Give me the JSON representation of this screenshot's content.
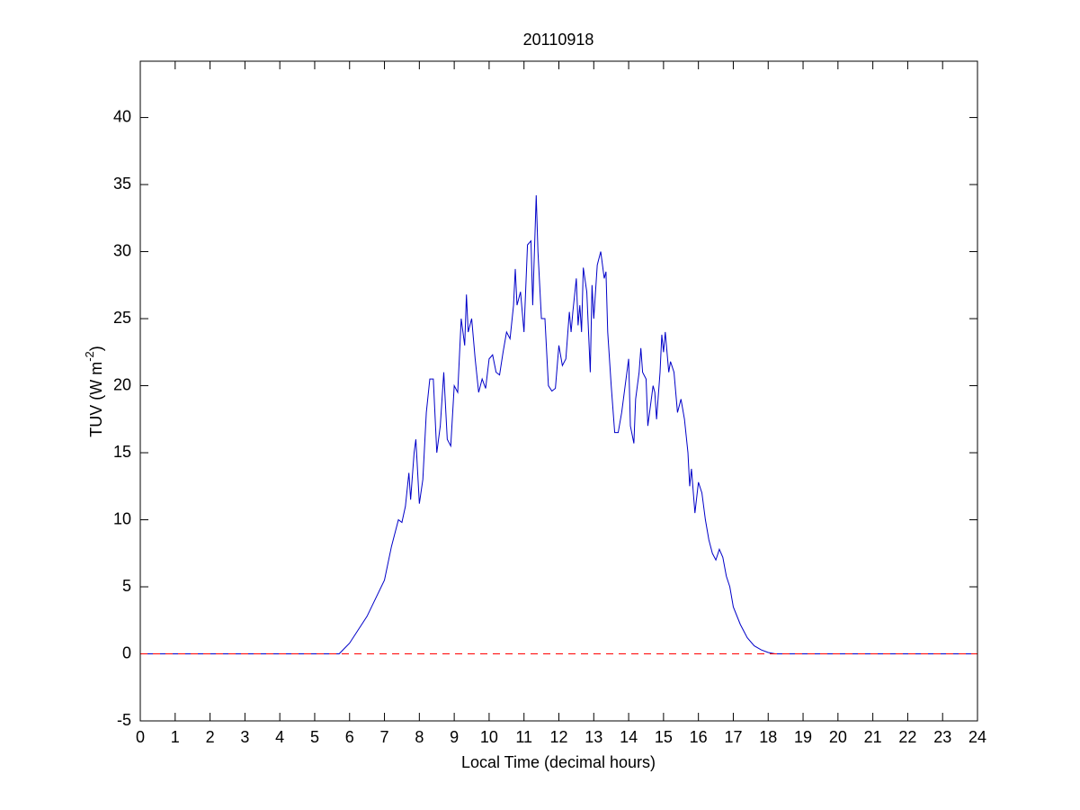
{
  "chart_data": {
    "type": "line",
    "title": "20110918",
    "x_label": "Local Time (decimal hours)",
    "y_label": [
      "TUV (W m",
      "-2",
      ")"
    ],
    "xlim": [
      0,
      24
    ],
    "xticks": [
      0,
      1,
      2,
      3,
      4,
      5,
      6,
      7,
      8,
      9,
      10,
      11,
      12,
      13,
      14,
      15,
      16,
      17,
      18,
      19,
      20,
      21,
      22,
      23,
      24
    ],
    "ylim": [
      -5,
      44.2
    ],
    "yticks": [
      -5,
      0,
      5,
      10,
      15,
      20,
      25,
      30,
      35,
      40
    ],
    "grid": false,
    "series": [
      {
        "color": "#0000c8",
        "dash": false,
        "x": [
          0,
          5.7,
          6.0,
          6.5,
          7.0,
          7.2,
          7.4,
          7.5,
          7.6,
          7.7,
          7.75,
          7.85,
          7.9,
          8.0,
          8.1,
          8.2,
          8.3,
          8.4,
          8.5,
          8.6,
          8.7,
          8.8,
          8.9,
          9.0,
          9.1,
          9.2,
          9.3,
          9.35,
          9.4,
          9.5,
          9.6,
          9.7,
          9.8,
          9.9,
          10.0,
          10.1,
          10.2,
          10.3,
          10.4,
          10.5,
          10.6,
          10.7,
          10.75,
          10.8,
          10.9,
          11.0,
          11.1,
          11.2,
          11.25,
          11.35,
          11.4,
          11.5,
          11.6,
          11.7,
          11.8,
          11.9,
          12.0,
          12.1,
          12.2,
          12.3,
          12.35,
          12.4,
          12.5,
          12.55,
          12.6,
          12.65,
          12.7,
          12.8,
          12.85,
          12.9,
          12.95,
          13.0,
          13.1,
          13.2,
          13.3,
          13.35,
          13.4,
          13.5,
          13.6,
          13.7,
          13.8,
          13.9,
          14.0,
          14.05,
          14.15,
          14.2,
          14.3,
          14.35,
          14.4,
          14.5,
          14.55,
          14.6,
          14.7,
          14.75,
          14.8,
          14.9,
          14.95,
          15.0,
          15.05,
          15.1,
          15.15,
          15.2,
          15.3,
          15.4,
          15.5,
          15.6,
          15.7,
          15.75,
          15.8,
          15.9,
          16.0,
          16.1,
          16.2,
          16.3,
          16.4,
          16.5,
          16.6,
          16.7,
          16.8,
          16.9,
          17.0,
          17.2,
          17.4,
          17.6,
          17.8,
          18.0,
          18.2,
          18.4,
          24
        ],
        "values": [
          0,
          0,
          0.8,
          2.8,
          5.5,
          8,
          10,
          9.8,
          11,
          13.5,
          11.5,
          15,
          16,
          11.2,
          13,
          18,
          20.5,
          20.5,
          15,
          17,
          21,
          16,
          15.5,
          20,
          19.5,
          25,
          23,
          26.8,
          24,
          25,
          22,
          19.5,
          20.5,
          19.8,
          22,
          22.3,
          21,
          20.8,
          22.5,
          24,
          23.5,
          26,
          28.7,
          26,
          27,
          24,
          30.5,
          30.8,
          26,
          34.2,
          30,
          25,
          25,
          20,
          19.6,
          19.8,
          23,
          21.5,
          22,
          25.5,
          24,
          25.5,
          28,
          24.5,
          26,
          24,
          28.8,
          27,
          24,
          21,
          27.5,
          25,
          29,
          30,
          28,
          28.5,
          24,
          20,
          16.5,
          16.5,
          18,
          20,
          22,
          17,
          15.7,
          19,
          21,
          22.8,
          21,
          20.5,
          17,
          18,
          20,
          19.5,
          17.5,
          21,
          23.8,
          22.5,
          24,
          22.5,
          21,
          21.8,
          21,
          18,
          19,
          17.5,
          15,
          12.5,
          13.8,
          10.5,
          12.8,
          12,
          10,
          8.5,
          7.5,
          7,
          7.8,
          7.2,
          5.8,
          5,
          3.5,
          2.2,
          1.2,
          0.6,
          0.3,
          0.1,
          0,
          0,
          0
        ]
      },
      {
        "color": "#ff0000",
        "dash": true,
        "x": [
          0,
          24
        ],
        "values": [
          0,
          0
        ]
      }
    ]
  }
}
